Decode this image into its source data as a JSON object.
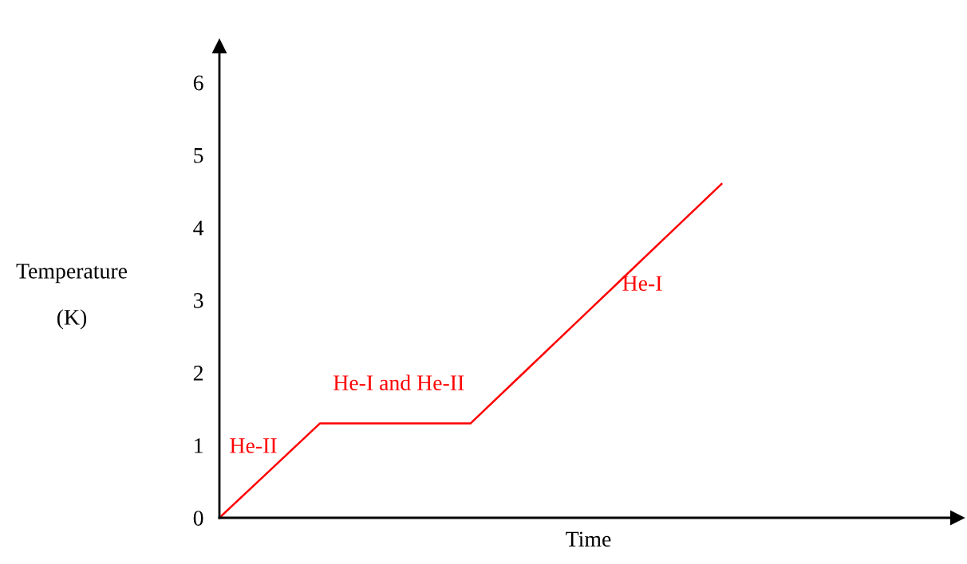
{
  "chart_data": {
    "type": "line",
    "xlabel": "Time",
    "ylabel": "Temperature\n\n(K)",
    "categories": [
      null,
      null,
      null,
      null,
      null,
      null,
      null,
      null,
      null,
      null,
      null
    ],
    "series": [
      {
        "color": "#ff0000",
        "values": [
          0,
          0.65,
          1.3,
          1.3,
          1.3,
          1.3,
          1.96,
          2.62,
          3.28,
          3.94,
          4.6
        ]
      }
    ],
    "ylim": [
      0,
      6.5
    ],
    "yticks": [
      0,
      1,
      2,
      3,
      4,
      5,
      6
    ],
    "tick_labels": "y",
    "grid": false,
    "legend": false,
    "marker": "none",
    "line_style": "solid",
    "annotations": [
      "He-II",
      "He-I and He-II",
      "He-I"
    ]
  }
}
